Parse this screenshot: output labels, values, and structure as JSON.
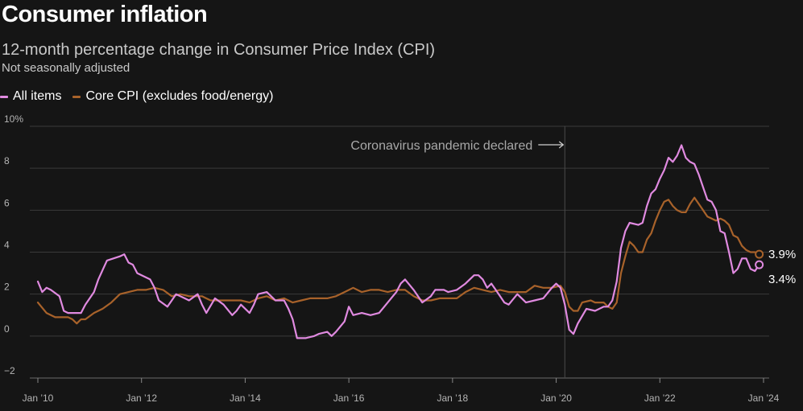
{
  "chart_data": {
    "type": "line",
    "title": "Consumer inflation",
    "subtitle": "12-month percentage change in Consumer Price Index (CPI)",
    "note": "Not seasonally adjusted",
    "ylim": [
      -2,
      10
    ],
    "yticks": [
      -2,
      0,
      2,
      4,
      6,
      8,
      10
    ],
    "ytick_labels": [
      "−2",
      "0",
      "2",
      "4",
      "6",
      "8",
      "10%"
    ],
    "xlim": [
      "2010-01",
      "2023-12"
    ],
    "xticks": [
      "2010-01",
      "2012-01",
      "2014-01",
      "2016-01",
      "2018-01",
      "2020-01",
      "2022-01",
      "2024-01"
    ],
    "xtick_labels": [
      "Jan ’10",
      "Jan ’12",
      "Jan ’14",
      "Jan ’16",
      "Jan ’18",
      "Jan ’20",
      "Jan ’22",
      "Jan ’24"
    ],
    "grid": true,
    "legend_position": "top-left",
    "series": [
      {
        "name": "All items",
        "color": "#e08ae0",
        "points": [
          [
            "2010-01",
            2.6
          ],
          [
            "2010-02",
            2.1
          ],
          [
            "2010-03",
            2.3
          ],
          [
            "2010-04",
            2.2
          ],
          [
            "2010-06",
            1.9
          ],
          [
            "2010-07",
            1.2
          ],
          [
            "2010-08",
            1.1
          ],
          [
            "2010-10",
            1.1
          ],
          [
            "2010-11",
            1.1
          ],
          [
            "2010-12",
            1.5
          ],
          [
            "2011-02",
            2.1
          ],
          [
            "2011-03",
            2.7
          ],
          [
            "2011-05",
            3.6
          ],
          [
            "2011-08",
            3.8
          ],
          [
            "2011-09",
            3.9
          ],
          [
            "2011-10",
            3.5
          ],
          [
            "2011-11",
            3.4
          ],
          [
            "2011-12",
            3.0
          ],
          [
            "2012-03",
            2.7
          ],
          [
            "2012-04",
            2.3
          ],
          [
            "2012-05",
            1.7
          ],
          [
            "2012-07",
            1.4
          ],
          [
            "2012-08",
            1.7
          ],
          [
            "2012-09",
            2.0
          ],
          [
            "2012-11",
            1.8
          ],
          [
            "2012-12",
            1.7
          ],
          [
            "2013-02",
            2.0
          ],
          [
            "2013-03",
            1.5
          ],
          [
            "2013-04",
            1.1
          ],
          [
            "2013-06",
            1.8
          ],
          [
            "2013-08",
            1.5
          ],
          [
            "2013-10",
            1.0
          ],
          [
            "2013-11",
            1.2
          ],
          [
            "2013-12",
            1.5
          ],
          [
            "2014-02",
            1.1
          ],
          [
            "2014-03",
            1.5
          ],
          [
            "2014-04",
            2.0
          ],
          [
            "2014-06",
            2.1
          ],
          [
            "2014-08",
            1.7
          ],
          [
            "2014-10",
            1.7
          ],
          [
            "2014-11",
            1.3
          ],
          [
            "2014-12",
            0.8
          ],
          [
            "2015-01",
            -0.1
          ],
          [
            "2015-03",
            -0.1
          ],
          [
            "2015-05",
            0.0
          ],
          [
            "2015-06",
            0.1
          ],
          [
            "2015-08",
            0.2
          ],
          [
            "2015-09",
            0.0
          ],
          [
            "2015-10",
            0.2
          ],
          [
            "2015-12",
            0.7
          ],
          [
            "2016-01",
            1.4
          ],
          [
            "2016-02",
            1.0
          ],
          [
            "2016-04",
            1.1
          ],
          [
            "2016-06",
            1.0
          ],
          [
            "2016-08",
            1.1
          ],
          [
            "2016-10",
            1.6
          ],
          [
            "2016-12",
            2.1
          ],
          [
            "2017-01",
            2.5
          ],
          [
            "2017-02",
            2.7
          ],
          [
            "2017-04",
            2.2
          ],
          [
            "2017-06",
            1.6
          ],
          [
            "2017-08",
            1.9
          ],
          [
            "2017-09",
            2.2
          ],
          [
            "2017-11",
            2.2
          ],
          [
            "2017-12",
            2.1
          ],
          [
            "2018-02",
            2.2
          ],
          [
            "2018-04",
            2.5
          ],
          [
            "2018-06",
            2.9
          ],
          [
            "2018-07",
            2.9
          ],
          [
            "2018-08",
            2.7
          ],
          [
            "2018-09",
            2.3
          ],
          [
            "2018-10",
            2.5
          ],
          [
            "2018-11",
            2.2
          ],
          [
            "2018-12",
            1.9
          ],
          [
            "2019-01",
            1.6
          ],
          [
            "2019-02",
            1.5
          ],
          [
            "2019-04",
            2.0
          ],
          [
            "2019-06",
            1.6
          ],
          [
            "2019-08",
            1.7
          ],
          [
            "2019-10",
            1.8
          ],
          [
            "2019-12",
            2.3
          ],
          [
            "2020-01",
            2.5
          ],
          [
            "2020-02",
            2.3
          ],
          [
            "2020-03",
            1.5
          ],
          [
            "2020-04",
            0.3
          ],
          [
            "2020-05",
            0.1
          ],
          [
            "2020-06",
            0.6
          ],
          [
            "2020-08",
            1.3
          ],
          [
            "2020-10",
            1.2
          ],
          [
            "2020-12",
            1.4
          ],
          [
            "2021-01",
            1.4
          ],
          [
            "2021-02",
            1.7
          ],
          [
            "2021-03",
            2.6
          ],
          [
            "2021-04",
            4.2
          ],
          [
            "2021-05",
            5.0
          ],
          [
            "2021-06",
            5.4
          ],
          [
            "2021-08",
            5.3
          ],
          [
            "2021-09",
            5.4
          ],
          [
            "2021-10",
            6.2
          ],
          [
            "2021-11",
            6.8
          ],
          [
            "2021-12",
            7.0
          ],
          [
            "2022-01",
            7.5
          ],
          [
            "2022-02",
            7.9
          ],
          [
            "2022-03",
            8.5
          ],
          [
            "2022-04",
            8.3
          ],
          [
            "2022-05",
            8.6
          ],
          [
            "2022-06",
            9.1
          ],
          [
            "2022-07",
            8.5
          ],
          [
            "2022-08",
            8.3
          ],
          [
            "2022-09",
            8.2
          ],
          [
            "2022-10",
            7.7
          ],
          [
            "2022-11",
            7.1
          ],
          [
            "2022-12",
            6.5
          ],
          [
            "2023-01",
            6.4
          ],
          [
            "2023-02",
            6.0
          ],
          [
            "2023-03",
            5.0
          ],
          [
            "2023-04",
            4.9
          ],
          [
            "2023-05",
            4.0
          ],
          [
            "2023-06",
            3.0
          ],
          [
            "2023-07",
            3.2
          ],
          [
            "2023-08",
            3.7
          ],
          [
            "2023-09",
            3.7
          ],
          [
            "2023-10",
            3.2
          ],
          [
            "2023-11",
            3.1
          ],
          [
            "2023-12",
            3.4
          ]
        ],
        "end_label": "3.4%"
      },
      {
        "name": "Core CPI (excludes food/energy)",
        "color": "#a8622a",
        "points": [
          [
            "2010-01",
            1.6
          ],
          [
            "2010-03",
            1.1
          ],
          [
            "2010-05",
            0.9
          ],
          [
            "2010-08",
            0.9
          ],
          [
            "2010-09",
            0.8
          ],
          [
            "2010-10",
            0.6
          ],
          [
            "2010-11",
            0.8
          ],
          [
            "2010-12",
            0.8
          ],
          [
            "2011-02",
            1.1
          ],
          [
            "2011-04",
            1.3
          ],
          [
            "2011-06",
            1.6
          ],
          [
            "2011-08",
            2.0
          ],
          [
            "2011-10",
            2.1
          ],
          [
            "2011-12",
            2.2
          ],
          [
            "2012-02",
            2.2
          ],
          [
            "2012-04",
            2.3
          ],
          [
            "2012-06",
            2.2
          ],
          [
            "2012-08",
            1.9
          ],
          [
            "2012-10",
            2.0
          ],
          [
            "2012-12",
            1.9
          ],
          [
            "2013-03",
            1.9
          ],
          [
            "2013-05",
            1.7
          ],
          [
            "2013-07",
            1.7
          ],
          [
            "2013-09",
            1.7
          ],
          [
            "2013-11",
            1.7
          ],
          [
            "2013-12",
            1.7
          ],
          [
            "2014-02",
            1.6
          ],
          [
            "2014-04",
            1.8
          ],
          [
            "2014-06",
            1.9
          ],
          [
            "2014-08",
            1.7
          ],
          [
            "2014-10",
            1.8
          ],
          [
            "2014-12",
            1.6
          ],
          [
            "2015-02",
            1.7
          ],
          [
            "2015-04",
            1.8
          ],
          [
            "2015-06",
            1.8
          ],
          [
            "2015-08",
            1.8
          ],
          [
            "2015-10",
            1.9
          ],
          [
            "2015-12",
            2.1
          ],
          [
            "2016-02",
            2.3
          ],
          [
            "2016-04",
            2.1
          ],
          [
            "2016-06",
            2.2
          ],
          [
            "2016-08",
            2.2
          ],
          [
            "2016-10",
            2.1
          ],
          [
            "2016-12",
            2.2
          ],
          [
            "2017-02",
            2.2
          ],
          [
            "2017-04",
            1.9
          ],
          [
            "2017-06",
            1.7
          ],
          [
            "2017-08",
            1.7
          ],
          [
            "2017-10",
            1.8
          ],
          [
            "2017-12",
            1.8
          ],
          [
            "2018-02",
            1.8
          ],
          [
            "2018-04",
            2.1
          ],
          [
            "2018-06",
            2.3
          ],
          [
            "2018-08",
            2.2
          ],
          [
            "2018-10",
            2.1
          ],
          [
            "2018-12",
            2.2
          ],
          [
            "2019-02",
            2.1
          ],
          [
            "2019-04",
            2.1
          ],
          [
            "2019-06",
            2.1
          ],
          [
            "2019-08",
            2.4
          ],
          [
            "2019-10",
            2.3
          ],
          [
            "2019-12",
            2.3
          ],
          [
            "2020-02",
            2.4
          ],
          [
            "2020-03",
            2.1
          ],
          [
            "2020-04",
            1.4
          ],
          [
            "2020-05",
            1.2
          ],
          [
            "2020-06",
            1.2
          ],
          [
            "2020-07",
            1.6
          ],
          [
            "2020-09",
            1.7
          ],
          [
            "2020-10",
            1.6
          ],
          [
            "2020-12",
            1.6
          ],
          [
            "2021-01",
            1.4
          ],
          [
            "2021-02",
            1.3
          ],
          [
            "2021-03",
            1.6
          ],
          [
            "2021-04",
            3.0
          ],
          [
            "2021-05",
            3.8
          ],
          [
            "2021-06",
            4.5
          ],
          [
            "2021-07",
            4.3
          ],
          [
            "2021-08",
            4.0
          ],
          [
            "2021-09",
            4.0
          ],
          [
            "2021-10",
            4.6
          ],
          [
            "2021-11",
            4.9
          ],
          [
            "2021-12",
            5.5
          ],
          [
            "2022-01",
            6.0
          ],
          [
            "2022-02",
            6.4
          ],
          [
            "2022-03",
            6.5
          ],
          [
            "2022-04",
            6.2
          ],
          [
            "2022-05",
            6.0
          ],
          [
            "2022-06",
            5.9
          ],
          [
            "2022-07",
            5.9
          ],
          [
            "2022-08",
            6.3
          ],
          [
            "2022-09",
            6.6
          ],
          [
            "2022-10",
            6.3
          ],
          [
            "2022-11",
            6.0
          ],
          [
            "2022-12",
            5.7
          ],
          [
            "2023-01",
            5.6
          ],
          [
            "2023-02",
            5.5
          ],
          [
            "2023-03",
            5.6
          ],
          [
            "2023-04",
            5.5
          ],
          [
            "2023-05",
            5.3
          ],
          [
            "2023-06",
            4.8
          ],
          [
            "2023-07",
            4.7
          ],
          [
            "2023-08",
            4.3
          ],
          [
            "2023-09",
            4.1
          ],
          [
            "2023-10",
            4.0
          ],
          [
            "2023-11",
            4.0
          ],
          [
            "2023-12",
            3.9
          ]
        ],
        "end_label": "3.9%"
      }
    ],
    "annotations": [
      {
        "text": "Coronavirus pandemic declared",
        "date": "2020-03",
        "arrow": "→"
      }
    ]
  }
}
